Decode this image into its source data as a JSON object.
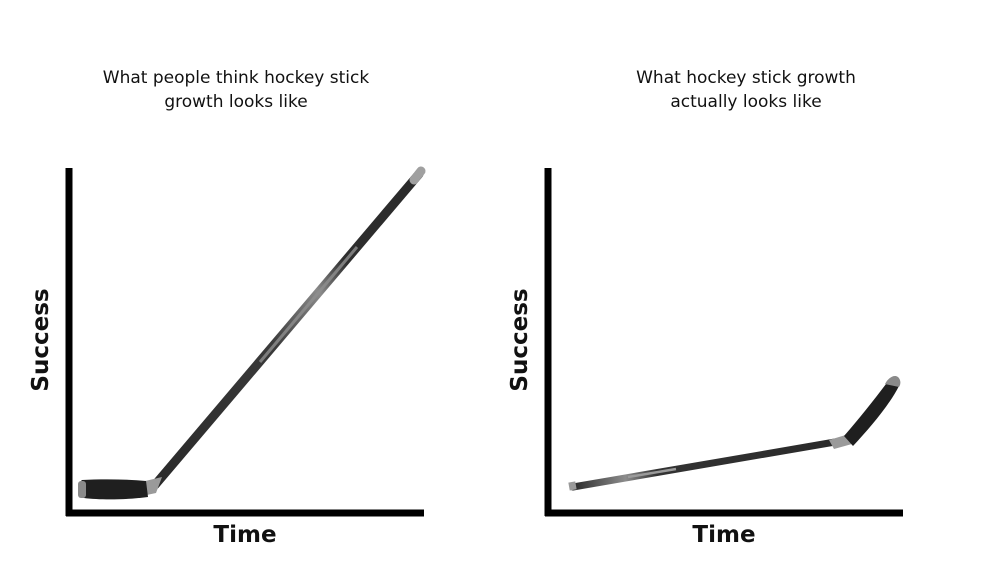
{
  "panels": [
    {
      "title_line1": "What people think hockey stick",
      "title_line2": "growth looks like",
      "xlabel": "Time",
      "ylabel": "Success"
    },
    {
      "title_line1": "What hockey stick growth",
      "title_line2": "actually looks like",
      "xlabel": "Time",
      "ylabel": "Success"
    }
  ],
  "colors": {
    "axis": "#000000",
    "stick_shaft": "#2b2b2b",
    "stick_highlight": "#8a8a8a",
    "stick_tape": "#9a9a9a",
    "blade": "#1e1e1e"
  }
}
